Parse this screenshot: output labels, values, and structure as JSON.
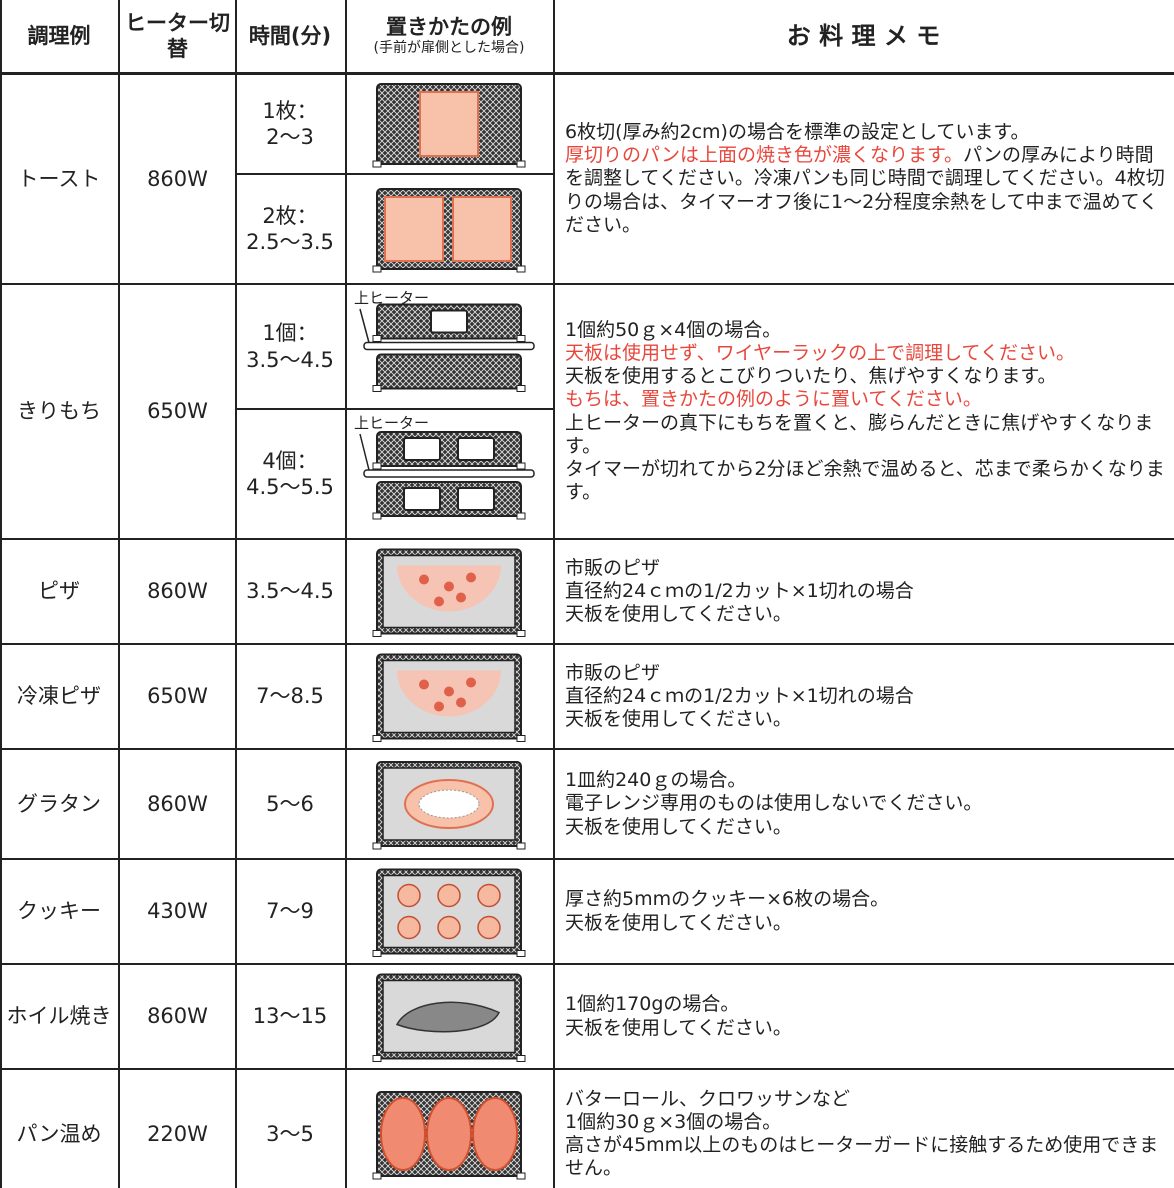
{
  "header": {
    "dish": "調理例",
    "heater": "ヒーター切替",
    "time": "時間(分)",
    "placement": "置きかたの例",
    "placement_note": "(手前が扉側とした場合)",
    "memo": "お 料 理 メ モ"
  },
  "rows": [
    {
      "dish": "トースト",
      "heater": "860W",
      "times": [
        {
          "lines": [
            "1枚：",
            "2～3"
          ]
        },
        {
          "lines": [
            "2枚：",
            "2.5～3.5"
          ]
        }
      ],
      "memo": [
        [
          {
            "text": "6枚切(厚み約2cm)の場合を標準の設定としています。"
          }
        ],
        [
          {
            "text": "厚切りのパンは上面の焼き色が濃くなります。",
            "color": "#e8473c"
          },
          {
            "text": "パンの厚みにより時間を調整してください。冷凍パンも同じ時間で調理してください。4枚切りの場合は、タイマーオフ後に1～2分程度余熱をして中まで温めてください。"
          }
        ]
      ]
    },
    {
      "dish": "きりもち",
      "heater": "650W",
      "times": [
        {
          "lines": [
            "1個：",
            "3.5～4.5"
          ],
          "label": "上ヒーター"
        },
        {
          "lines": [
            "4個：",
            "4.5～5.5"
          ],
          "label": "上ヒーター"
        }
      ],
      "memo": [
        [
          {
            "text": "1個約50ｇ×4個の場合。"
          }
        ],
        [
          {
            "text": "天板は使用せず、ワイヤーラックの上で調理してください。",
            "color": "#e8473c"
          }
        ],
        [
          {
            "text": "天板を使用するとこびりついたり、焦げやすくなります。"
          }
        ],
        [
          {
            "text": "もちは、置きかたの例のように置いてください。",
            "color": "#e8473c"
          }
        ],
        [
          {
            "text": "上ヒーターの真下にもちを置くと、膨らんだときに焦げやすくなります。"
          }
        ],
        [
          {
            "text": "タイマーが切れてから2分ほど余熱で温めると、芯まで柔らかくなります。"
          }
        ]
      ]
    },
    {
      "dish": "ピザ",
      "heater": "860W",
      "times": [
        {
          "lines": [
            "3.5～4.5"
          ]
        }
      ],
      "memo": [
        [
          {
            "text": "市販のピザ"
          }
        ],
        [
          {
            "text": "直径約24ｃｍの1/2カット×1切れの場合"
          }
        ],
        [
          {
            "text": "天板を使用してください。"
          }
        ]
      ]
    },
    {
      "dish": "冷凍ピザ",
      "heater": "650W",
      "times": [
        {
          "lines": [
            "7～8.5"
          ]
        }
      ],
      "memo": [
        [
          {
            "text": "市販のピザ"
          }
        ],
        [
          {
            "text": "直径約24ｃｍの1/2カット×1切れの場合"
          }
        ],
        [
          {
            "text": "天板を使用してください。"
          }
        ]
      ]
    },
    {
      "dish": "グラタン",
      "heater": "860W",
      "times": [
        {
          "lines": [
            "5～6"
          ]
        }
      ],
      "memo": [
        [
          {
            "text": "1皿約240ｇの場合。"
          }
        ],
        [
          {
            "text": "電子レンジ専用のものは使用しないでください。"
          }
        ],
        [
          {
            "text": "天板を使用してください。"
          }
        ]
      ]
    },
    {
      "dish": "クッキー",
      "heater": "430W",
      "times": [
        {
          "lines": [
            "7～9"
          ]
        }
      ],
      "memo": [
        [
          {
            "text": "厚さ約5mmのクッキー×6枚の場合。"
          }
        ],
        [
          {
            "text": "天板を使用してください。"
          }
        ]
      ]
    },
    {
      "dish": "ホイル焼き",
      "heater": "860W",
      "times": [
        {
          "lines": [
            "13～15"
          ]
        }
      ],
      "memo": [
        [
          {
            "text": "1個約170gの場合。"
          }
        ],
        [
          {
            "text": "天板を使用してください。"
          }
        ]
      ]
    },
    {
      "dish": "パン温め",
      "heater": "220W",
      "times": [
        {
          "lines": [
            "3～5"
          ]
        }
      ],
      "memo": [
        [
          {
            "text": "バターロール、クロワッサンなど"
          }
        ],
        [
          {
            "text": "1個約30ｇ×3個の場合。"
          }
        ],
        [
          {
            "text": "高さが45mm以上のものはヒーターガードに接触するため使用できません。"
          }
        ]
      ]
    }
  ]
}
